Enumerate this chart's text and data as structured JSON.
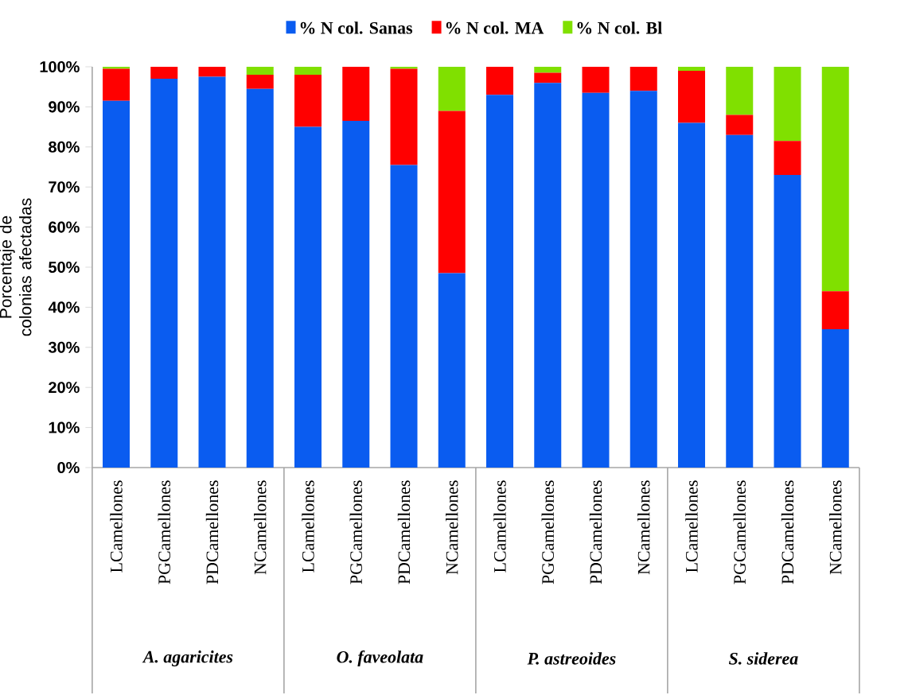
{
  "chart_data": {
    "type": "bar",
    "stacked": true,
    "ylabel": "Porcentaje de colonias afectadas",
    "categories": [
      "LCamellones",
      "PGCamellones",
      "PDCamellones",
      "NCamellones",
      "LCamellones",
      "PGCamellones",
      "PDCamellones",
      "NCamellones",
      "LCamellones",
      "PGCamellones",
      "PDCamellones",
      "NCamellones",
      "LCamellones",
      "PGCamellones",
      "PDCamellones",
      "NCamellones"
    ],
    "series": [
      {
        "name": "% N col. Sanas",
        "color": "#0a5cf0",
        "values": [
          91.5,
          97,
          97.5,
          94.5,
          85,
          86.5,
          75.5,
          48.5,
          93,
          96,
          93.5,
          94,
          86,
          83,
          73,
          34.5
        ]
      },
      {
        "name": "% N col. MA",
        "color": "#ff0000",
        "values": [
          8,
          3,
          2.5,
          3.5,
          13,
          13.5,
          24,
          40.5,
          7,
          2.5,
          6.5,
          6,
          13,
          5,
          8.5,
          9.5
        ]
      },
      {
        "name": "% N col. Bl",
        "color": "#80e000",
        "values": [
          0.5,
          0,
          0,
          2,
          2,
          0,
          0.5,
          11,
          0,
          1.5,
          0,
          0,
          1,
          12,
          18.5,
          56
        ]
      }
    ],
    "ylim": [
      0,
      100
    ],
    "yticks": [
      {
        "value": 0,
        "label": "0%"
      },
      {
        "value": 10,
        "label": "10%"
      },
      {
        "value": 20,
        "label": "20%"
      },
      {
        "value": 30,
        "label": "30%"
      },
      {
        "value": 40,
        "label": "40%"
      },
      {
        "value": 50,
        "label": "50%"
      },
      {
        "value": 60,
        "label": "60%"
      },
      {
        "value": 70,
        "label": "70%"
      },
      {
        "value": 80,
        "label": "80%"
      },
      {
        "value": 90,
        "label": "90%"
      },
      {
        "value": 100,
        "label": "100%"
      }
    ],
    "annotations": [
      "A. agaricites",
      "O. faveolata",
      "P. astreoides",
      "S. siderea"
    ],
    "legend": "top"
  }
}
